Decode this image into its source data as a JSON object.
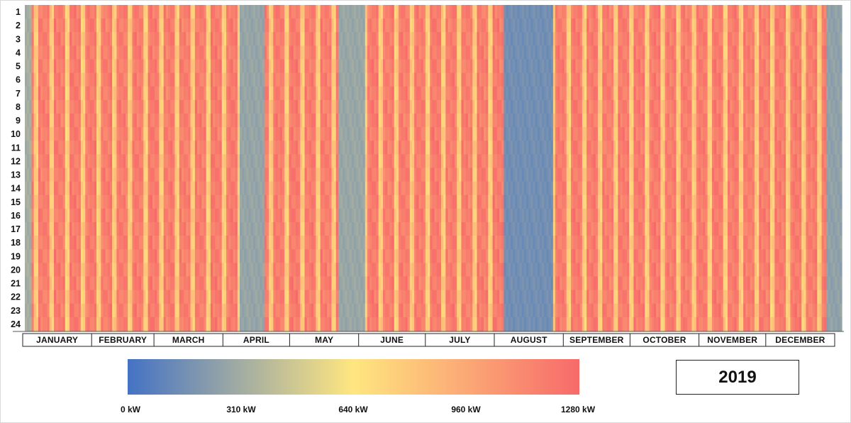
{
  "chart_data": {
    "type": "heatmap",
    "title": "",
    "year": "2019",
    "hours": [
      "1",
      "2",
      "3",
      "4",
      "5",
      "6",
      "7",
      "8",
      "9",
      "10",
      "11",
      "12",
      "13",
      "14",
      "15",
      "16",
      "17",
      "18",
      "19",
      "20",
      "21",
      "22",
      "23",
      "24"
    ],
    "months": [
      {
        "name": "JANUARY",
        "days": 31
      },
      {
        "name": "FEBRUARY",
        "days": 28
      },
      {
        "name": "MARCH",
        "days": 31
      },
      {
        "name": "APRIL",
        "days": 30
      },
      {
        "name": "MAY",
        "days": 31
      },
      {
        "name": "JUNE",
        "days": 30
      },
      {
        "name": "JULY",
        "days": 31
      },
      {
        "name": "AUGUST",
        "days": 31
      },
      {
        "name": "SEPTEMBER",
        "days": 30
      },
      {
        "name": "OCTOBER",
        "days": 31
      },
      {
        "name": "NOVEMBER",
        "days": 30
      },
      {
        "name": "DECEMBER",
        "days": 31
      }
    ],
    "colorbar": {
      "min_kw": 0,
      "max_kw": 1280,
      "tick_labels": [
        "0 kW",
        "310 kW",
        "640 kW",
        "960 kW",
        "1280 kW"
      ],
      "colors": [
        "#4472c4",
        "#ffe680",
        "#f76a6a"
      ]
    },
    "low_load_periods": [
      {
        "from": "2019-01-01",
        "to": "2019-01-03",
        "kw_approx": 300
      },
      {
        "from": "2019-04-07",
        "to": "2019-04-17",
        "kw_approx": 250
      },
      {
        "from": "2019-05-21",
        "to": "2019-06-01",
        "kw_approx": 260
      },
      {
        "from": "2019-08-03",
        "to": "2019-08-24",
        "kw_approx": 130
      },
      {
        "from": "2019-12-25",
        "to": "2019-12-31",
        "kw_approx": 230
      }
    ],
    "typical_weekday_kw": 1150,
    "typical_weekend_kw": 750
  }
}
